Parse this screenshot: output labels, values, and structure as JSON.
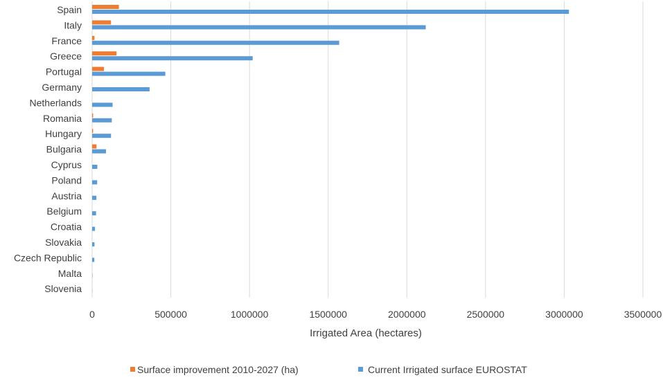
{
  "chart_data": {
    "type": "bar",
    "orientation": "horizontal",
    "categories": [
      "Spain",
      "Italy",
      "France",
      "Greece",
      "Portugal",
      "Germany",
      "Netherlands",
      "Romania",
      "Hungary",
      "Bulgaria",
      "Cyprus",
      "Poland",
      "Austria",
      "Belgium",
      "Croatia",
      "Slovakia",
      "Czech Republic",
      "Malta",
      "Slovenia"
    ],
    "series": [
      {
        "name": "Surface improvement 2010-2027 (ha)",
        "color": "#ED7D31",
        "values": [
          170000,
          120000,
          15000,
          155000,
          75000,
          0,
          0,
          6000,
          6000,
          28000,
          0,
          0,
          0,
          0,
          0,
          0,
          0,
          0,
          0
        ]
      },
      {
        "name": "Current Irrigated surface EUROSTAT",
        "color": "#5B9BD5",
        "values": [
          3030000,
          2120000,
          1570000,
          1020000,
          465000,
          365000,
          130000,
          125000,
          120000,
          88000,
          33000,
          32000,
          27000,
          25000,
          18000,
          15000,
          14000,
          2000,
          1000
        ]
      }
    ],
    "xlabel": "Irrigated Area (hectares)",
    "xlim": [
      0,
      3500000
    ],
    "xticks": [
      "0",
      "500000",
      "1000000",
      "1500000",
      "2000000",
      "2500000",
      "3000000",
      "3500000"
    ],
    "grid": "vertical",
    "legend_position": "bottom"
  }
}
